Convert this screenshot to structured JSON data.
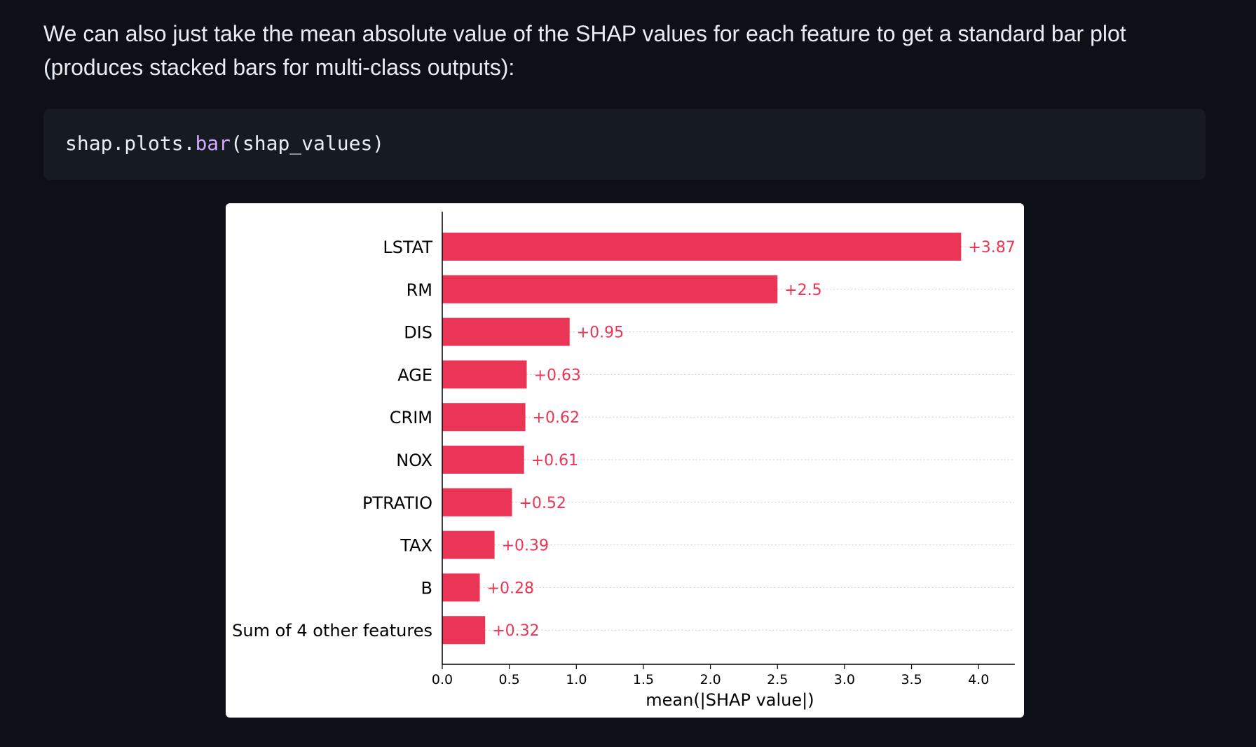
{
  "page": {
    "intro_text": "We can also just take the mean absolute value of the SHAP values for each feature to get a standard bar plot (produces stacked bars for multi-class outputs):",
    "code": {
      "prefix": "shap.plots.",
      "func": "bar",
      "args": "(shap_values)"
    }
  },
  "colors": {
    "bar": "#eb3556",
    "axis": "#000000",
    "grid": "#cccccc",
    "page_bg": "#0d1117",
    "code_bg": "#161b22",
    "code_func": "#d2a8ff"
  },
  "chart_data": {
    "type": "bar",
    "orientation": "horizontal",
    "categories": [
      "LSTAT",
      "RM",
      "DIS",
      "AGE",
      "CRIM",
      "NOX",
      "PTRATIO",
      "TAX",
      "B",
      "Sum of 4 other features"
    ],
    "values": [
      3.87,
      2.5,
      0.95,
      0.63,
      0.62,
      0.61,
      0.52,
      0.39,
      0.28,
      0.32
    ],
    "value_labels": [
      "+3.87",
      "+2.5",
      "+0.95",
      "+0.63",
      "+0.62",
      "+0.61",
      "+0.52",
      "+0.39",
      "+0.28",
      "+0.32"
    ],
    "xlabel": "mean(|SHAP value|)",
    "ylabel": "",
    "xlim": [
      0,
      4.27
    ],
    "xticks": [
      0.0,
      0.5,
      1.0,
      1.5,
      2.0,
      2.5,
      3.0,
      3.5,
      4.0
    ],
    "xtick_labels": [
      "0.0",
      "0.5",
      "1.0",
      "1.5",
      "2.0",
      "2.5",
      "3.0",
      "3.5",
      "4.0"
    ],
    "grid": "dotted horizontal lines behind each bar"
  }
}
